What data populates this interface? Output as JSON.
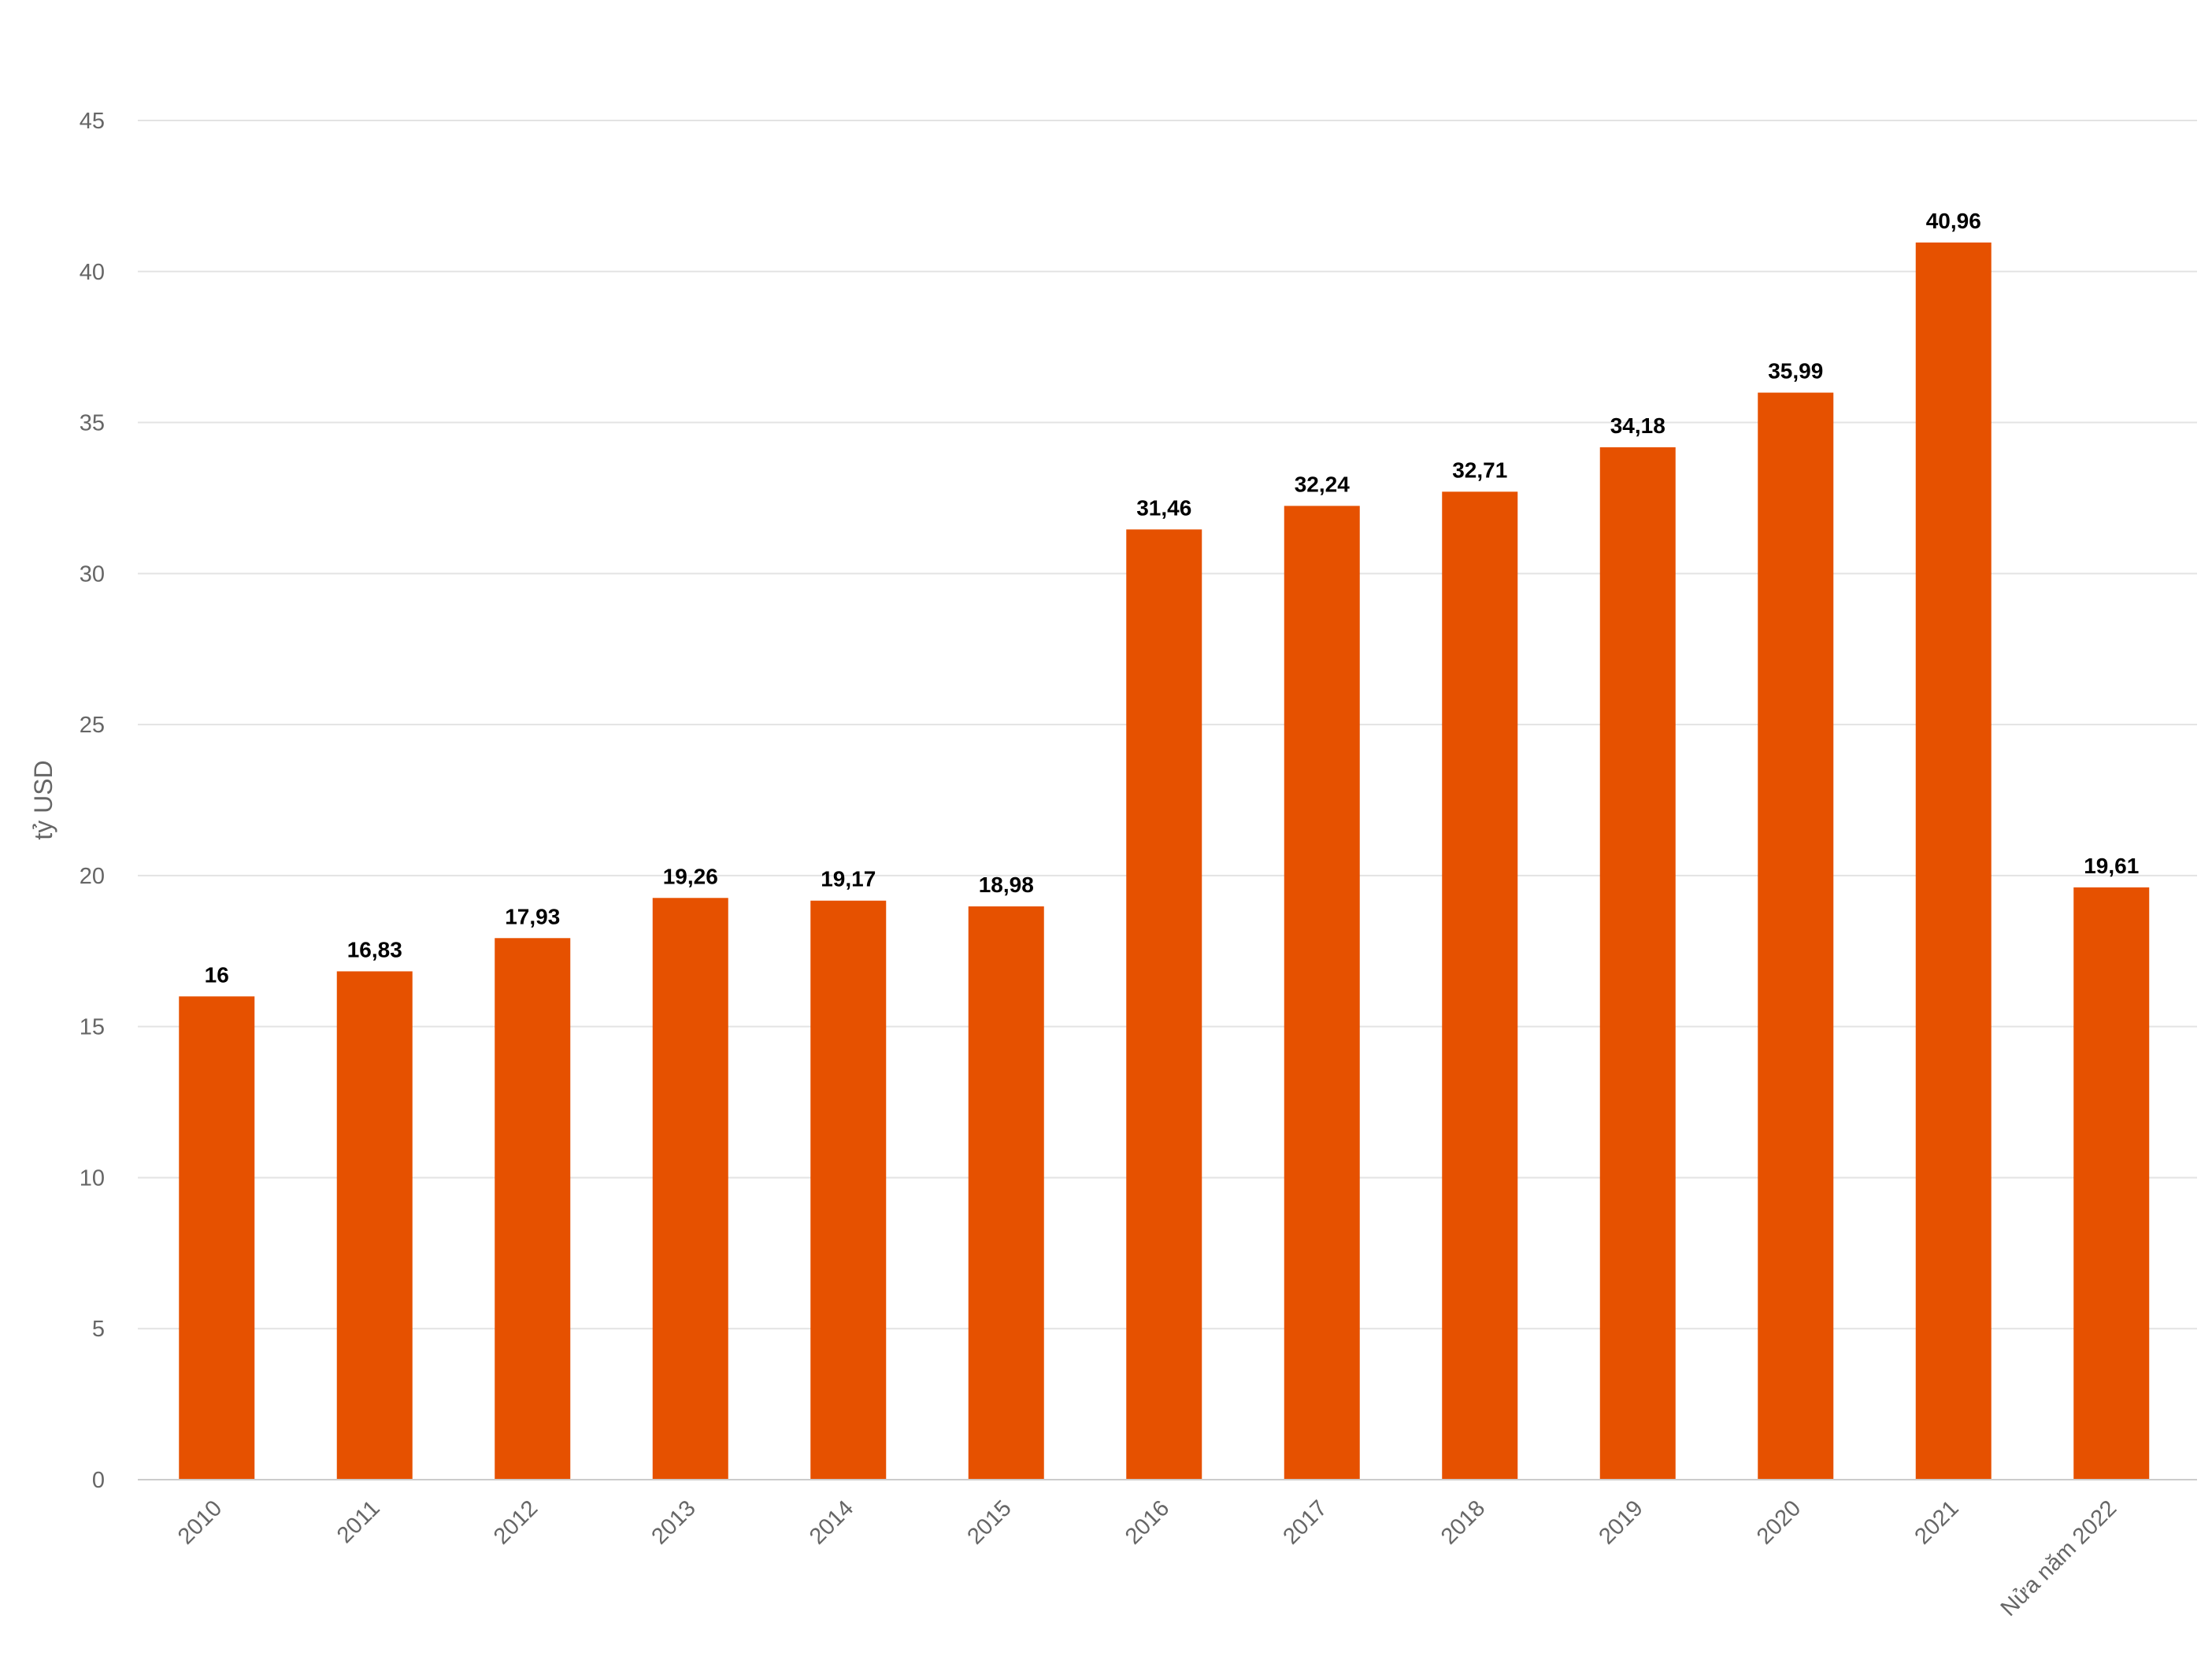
{
  "chart_data": {
    "type": "bar",
    "title": "",
    "xlabel": "",
    "ylabel": "tỷ USD",
    "ylim": [
      0,
      45
    ],
    "yticks": [
      0,
      5,
      10,
      15,
      20,
      25,
      30,
      35,
      40,
      45
    ],
    "grid": true,
    "legend": "none",
    "bar_color": "#e65100",
    "categories": [
      "2010",
      "2011",
      "2012",
      "2013",
      "2014",
      "2015",
      "2016",
      "2017",
      "2018",
      "2019",
      "2020",
      "2021",
      "Nửa năm 2022"
    ],
    "values": [
      16,
      16.83,
      17.93,
      19.26,
      19.17,
      18.98,
      31.46,
      32.24,
      32.71,
      34.18,
      35.99,
      40.96,
      19.61
    ],
    "value_labels": [
      "16",
      "16,83",
      "17,93",
      "19,26",
      "19,17",
      "18,98",
      "31,46",
      "32,24",
      "32,71",
      "34,18",
      "35,99",
      "40,96",
      "19,61"
    ]
  }
}
